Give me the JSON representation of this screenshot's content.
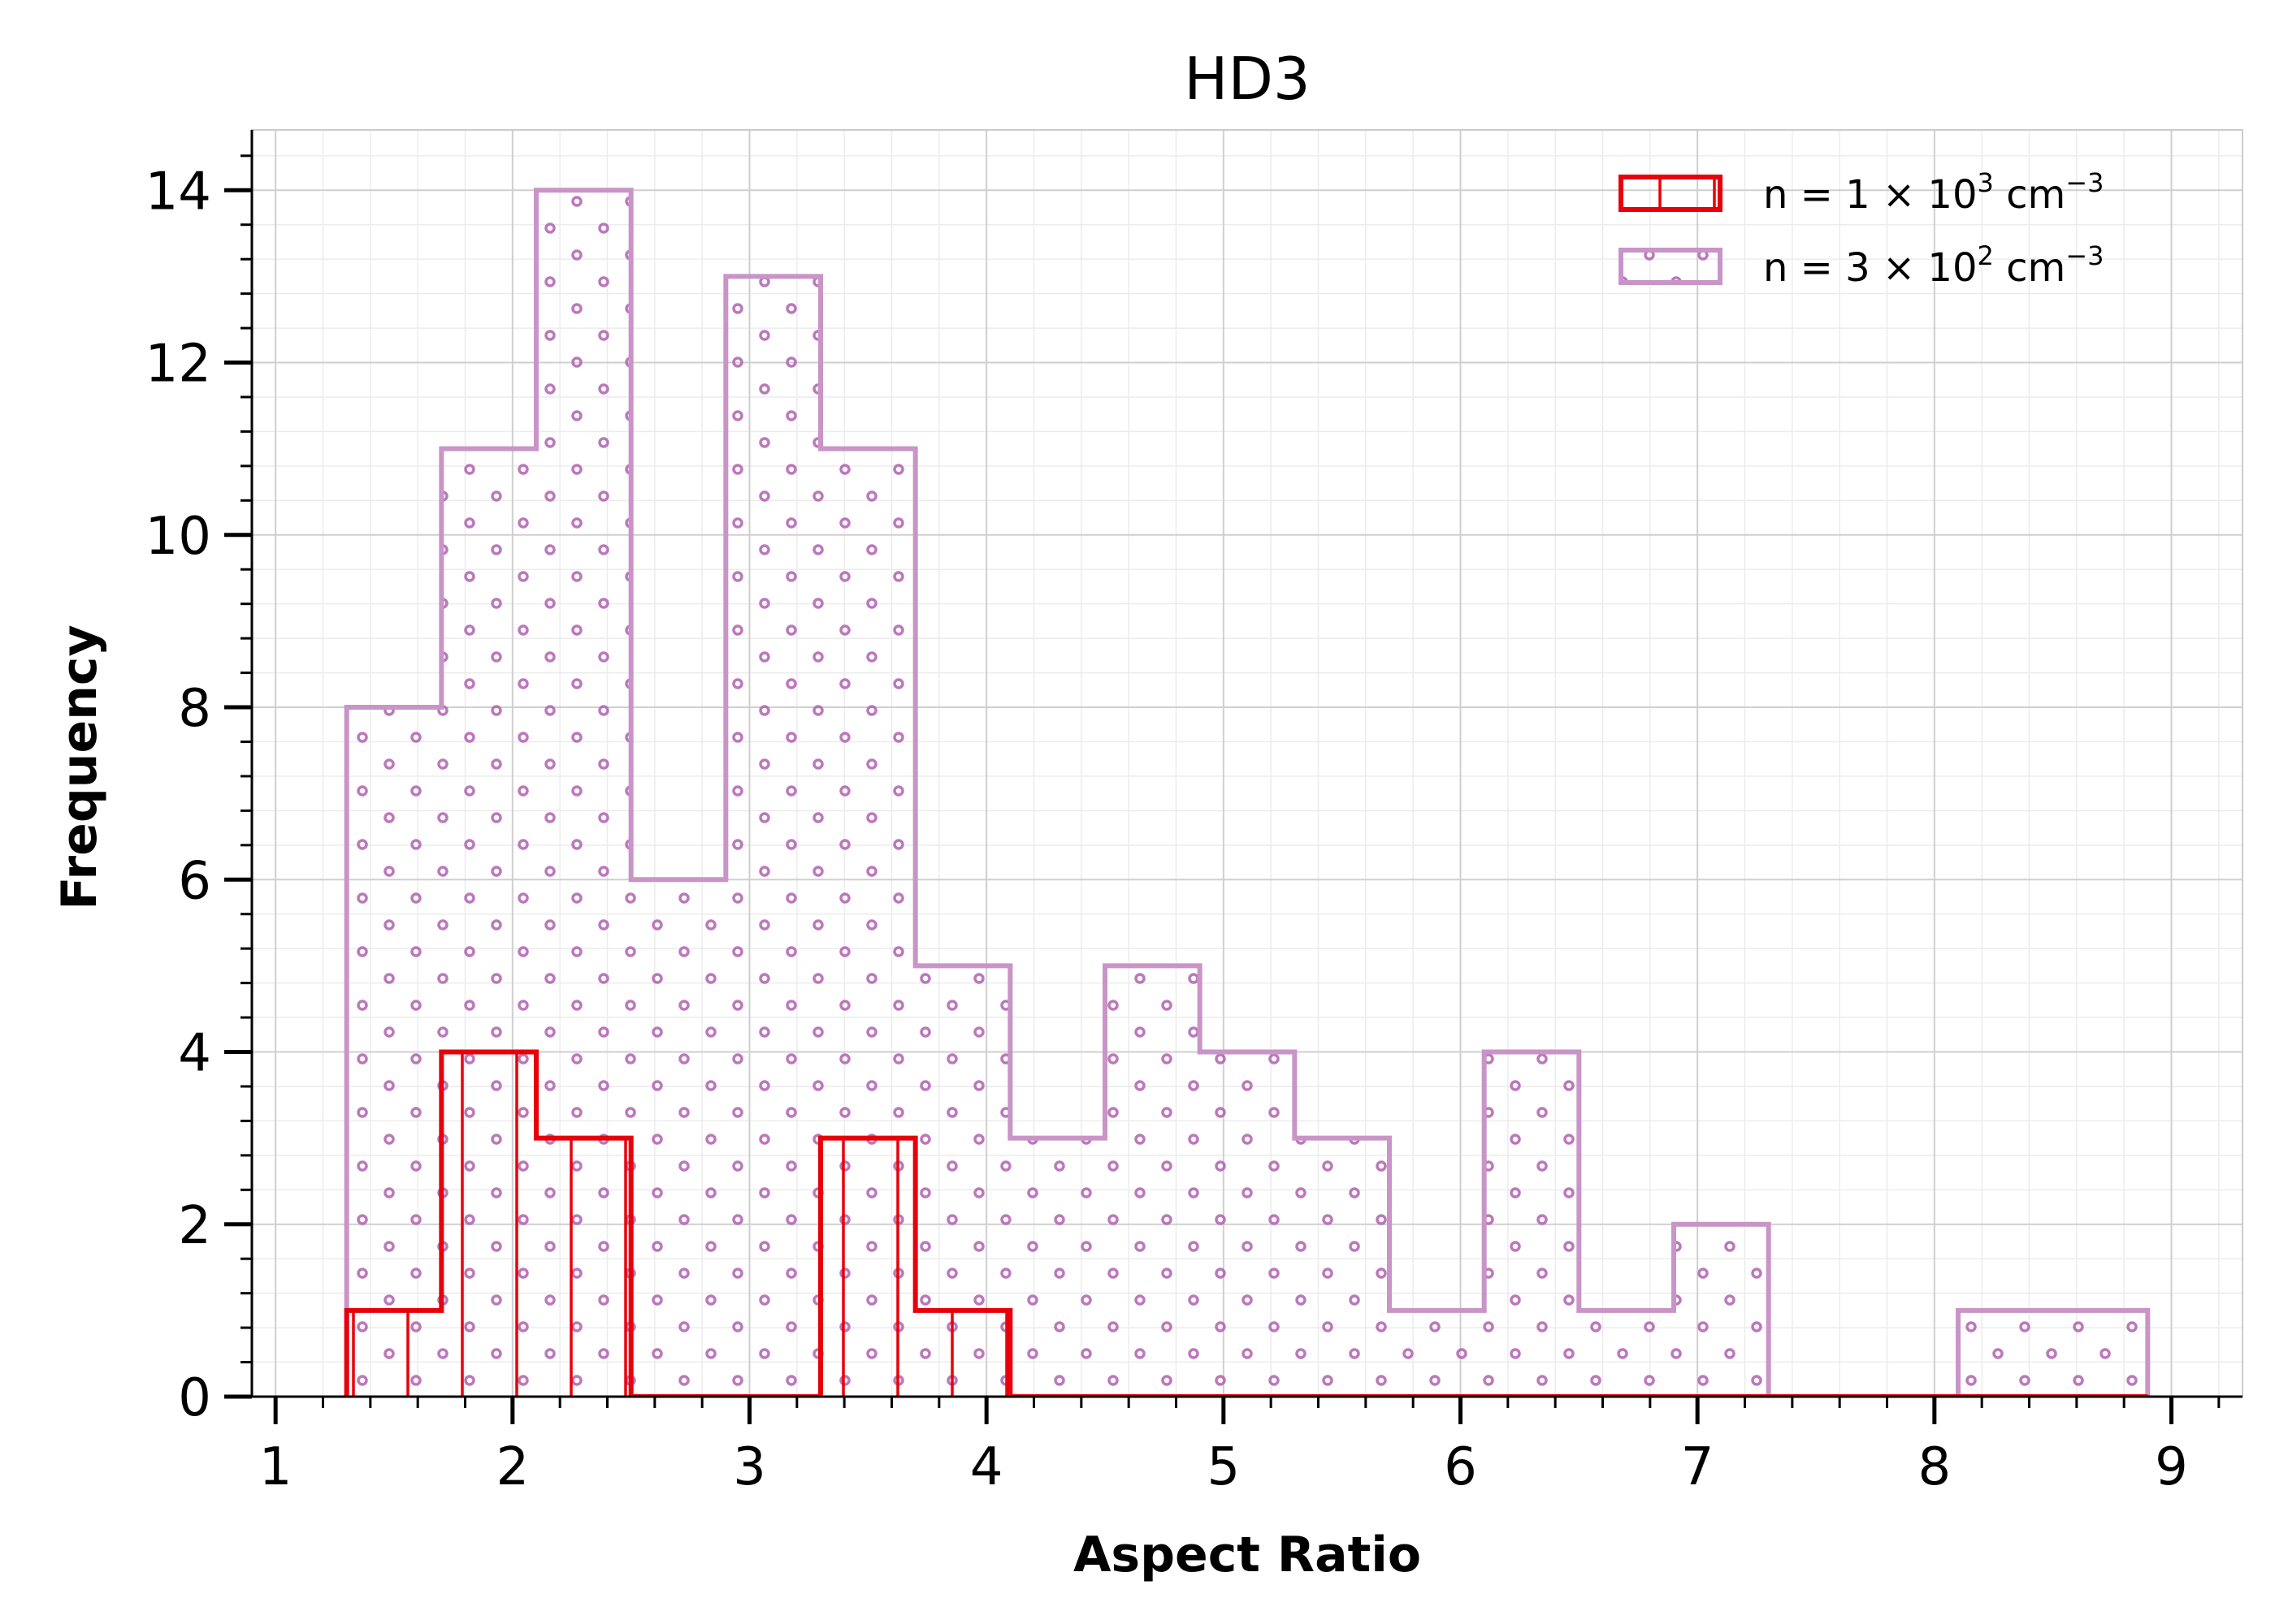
{
  "chart_data": {
    "type": "histogram",
    "title": "HD3",
    "xlabel": "Aspect Ratio",
    "ylabel": "Frequency",
    "xlim": [
      0.9,
      9.3
    ],
    "ylim": [
      0,
      14.7
    ],
    "xticks": [
      1,
      2,
      3,
      4,
      5,
      6,
      7,
      8,
      9
    ],
    "xtick_labels": [
      "1",
      "2",
      "3",
      "4",
      "5",
      "6",
      "7",
      "8",
      "9"
    ],
    "yticks": [
      0,
      2,
      4,
      6,
      8,
      10,
      12,
      14
    ],
    "ytick_labels": [
      "0",
      "2",
      "4",
      "6",
      "8",
      "10",
      "12",
      "14"
    ],
    "grid": true,
    "legend_position": "top-right",
    "bin_edges": [
      1.3,
      1.7,
      2.1,
      2.5,
      2.9,
      3.3,
      3.7,
      4.1,
      4.5,
      4.9,
      5.3,
      5.7,
      6.1,
      6.5,
      6.9,
      7.3,
      7.7,
      8.1,
      8.5,
      8.9
    ],
    "series": [
      {
        "name": "n = 1 × 10³ cm⁻³",
        "legend_main": "n  = 1 × 10",
        "legend_sup1": "3",
        "legend_unit": " cm",
        "legend_sup2": "−3",
        "color": "#e8000b",
        "hatch": "vertical-lines",
        "values": [
          1,
          4,
          3,
          0,
          0,
          3,
          1,
          0,
          0,
          0,
          0,
          0,
          0,
          0,
          0,
          0,
          0,
          0,
          0
        ]
      },
      {
        "name": "n = 3 × 10² cm⁻³",
        "legend_main": "n  = 3 × 10",
        "legend_sup1": "2",
        "legend_unit": " cm",
        "legend_sup2": "−3",
        "color": "#c994c7",
        "hatch": "dots",
        "values": [
          8,
          11,
          14,
          6,
          13,
          11,
          5,
          3,
          5,
          4,
          3,
          1,
          4,
          1,
          2,
          0,
          0,
          1,
          1
        ]
      }
    ]
  }
}
